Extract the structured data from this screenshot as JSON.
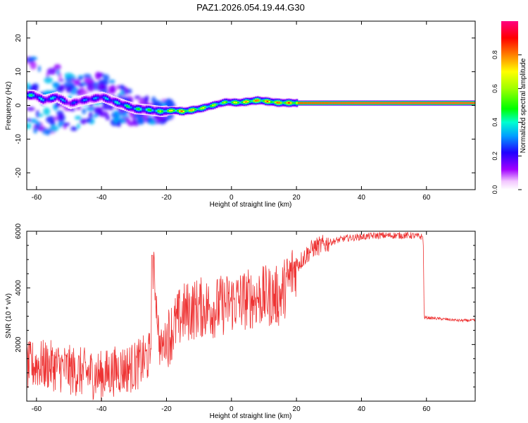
{
  "title": "PAZ1.2026.054.19.44.G30",
  "chart_data": [
    {
      "type": "heatmap",
      "title": "PAZ1.2026.054.19.44.G30",
      "xlabel": "Height of straight line (km)",
      "ylabel": "Frequency (Hz)",
      "xlim": [
        -63,
        75
      ],
      "ylim": [
        -25,
        25
      ],
      "xticks": [
        -60,
        -40,
        -20,
        0,
        20,
        40,
        60
      ],
      "yticks": [
        -20,
        -10,
        0,
        10,
        20
      ],
      "description_points": [
        {
          "x": -61,
          "y": 3.0,
          "amp": 0.45
        },
        {
          "x": -58,
          "y": 1.5,
          "amp": 0.35
        },
        {
          "x": -54,
          "y": 2.5,
          "amp": 0.4
        },
        {
          "x": -50,
          "y": 0.5,
          "amp": 0.25
        },
        {
          "x": -46,
          "y": 1.5,
          "amp": 0.3
        },
        {
          "x": -40,
          "y": 2.5,
          "amp": 0.35
        },
        {
          "x": -36,
          "y": 1.0,
          "amp": 0.4
        },
        {
          "x": -33,
          "y": 0.0,
          "amp": 0.45
        },
        {
          "x": -30,
          "y": -1.0,
          "amp": 0.5
        },
        {
          "x": -26,
          "y": -1.3,
          "amp": 0.5
        },
        {
          "x": -22,
          "y": -1.8,
          "amp": 0.6
        },
        {
          "x": -18,
          "y": -1.5,
          "amp": 0.75
        },
        {
          "x": -15,
          "y": -1.8,
          "amp": 0.85
        },
        {
          "x": -10,
          "y": -1.0,
          "amp": 0.7
        },
        {
          "x": -6,
          "y": 0.0,
          "amp": 0.65
        },
        {
          "x": -2,
          "y": 1.0,
          "amp": 0.6
        },
        {
          "x": 2,
          "y": 0.8,
          "amp": 0.75
        },
        {
          "x": 8,
          "y": 1.5,
          "amp": 0.85
        },
        {
          "x": 14,
          "y": 0.8,
          "amp": 0.85
        },
        {
          "x": 20,
          "y": 0.7,
          "amp": 0.9
        },
        {
          "x": 40,
          "y": 0.7,
          "amp": 0.95
        },
        {
          "x": 60,
          "y": 0.7,
          "amp": 0.95
        },
        {
          "x": 75,
          "y": 0.7,
          "amp": 0.95
        }
      ],
      "colorbar": {
        "label": "Normalized spectral amplitude",
        "range": [
          0.0,
          1.0
        ],
        "ticks": [
          0.0,
          0.2,
          0.4,
          0.6,
          0.8
        ],
        "tick_labels": [
          "0.0",
          "0.2",
          "0.4",
          "0.6",
          "0.8"
        ]
      }
    },
    {
      "type": "line",
      "title": "",
      "xlabel": "Height of straight line (km)",
      "ylabel": "SNR (10 * v/v)",
      "xlim": [
        -63,
        75
      ],
      "ylim": [
        0,
        6000
      ],
      "xticks": [
        -60,
        -40,
        -20,
        0,
        20,
        40,
        60
      ],
      "yticks": [
        2000,
        4000,
        6000
      ],
      "series": [
        {
          "name": "SNR",
          "color": "#ee3333",
          "x": [
            -63,
            -60,
            -55,
            -50,
            -45,
            -40,
            -35,
            -30,
            -25,
            -24,
            -22,
            -20,
            -15,
            -10,
            -5,
            0,
            5,
            10,
            15,
            20,
            25,
            30,
            35,
            40,
            45,
            50,
            55,
            59,
            59.3,
            60,
            65,
            70,
            75
          ],
          "y": [
            1200,
            1300,
            1250,
            1100,
            1000,
            900,
            1100,
            1200,
            1600,
            4800,
            1800,
            2200,
            3100,
            3300,
            3300,
            3500,
            3600,
            3700,
            3700,
            4800,
            5400,
            5600,
            5750,
            5800,
            5850,
            5850,
            5850,
            5800,
            2950,
            2950,
            2900,
            2850,
            2850
          ]
        }
      ]
    }
  ],
  "colors": {
    "line": "#ee3333",
    "axis": "#000000",
    "background": "#ffffff"
  }
}
